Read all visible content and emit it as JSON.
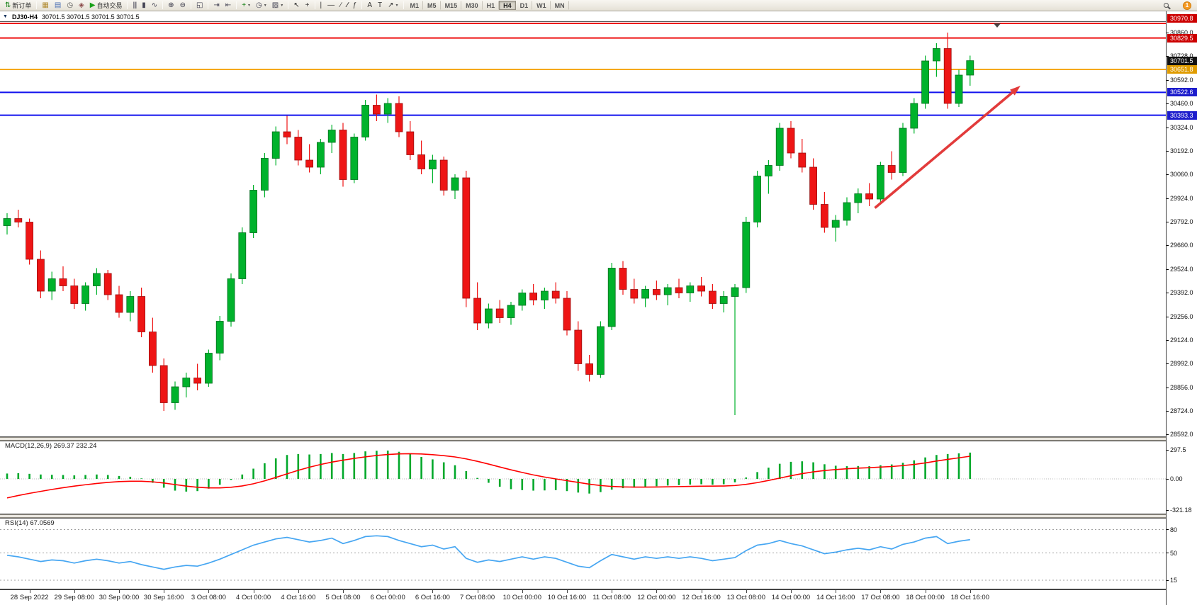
{
  "window": {
    "notification_count": "1"
  },
  "chart": {
    "menu_icon": "▼",
    "symbol_period": "DJ30-H4",
    "ohlc": "30701.5 30701.5 30701.5 30701.5"
  },
  "toolbar": {
    "groups": [
      {
        "items": [
          {
            "name": "new-order-button",
            "icon": "new-order-icon",
            "glyph": "⇅",
            "color": "#0a7a0a",
            "label": "新订单"
          }
        ]
      },
      {
        "items": [
          {
            "name": "charts-button",
            "icon": "chart-window-icon",
            "glyph": "▦",
            "color": "#b08a30"
          },
          {
            "name": "profiles-button",
            "icon": "profiles-icon",
            "glyph": "▤",
            "color": "#4a6fb5"
          },
          {
            "name": "market-watch-button",
            "icon": "market-watch-icon",
            "glyph": "◷",
            "color": "#555555"
          },
          {
            "name": "navigator-button",
            "icon": "navigator-icon",
            "glyph": "◈",
            "color": "#8a4a4a"
          },
          {
            "name": "autotrade-button",
            "icon": "play-icon",
            "glyph": "▶",
            "color": "#18a018",
            "label": "自动交易"
          }
        ]
      },
      {
        "items": [
          {
            "name": "bar-chart-button",
            "icon": "bar-chart-icon",
            "glyph": "|||",
            "ls": -1,
            "color": "#444455"
          },
          {
            "name": "candlestick-chart-button",
            "icon": "candlestick-icon",
            "glyph": "▮",
            "color": "#444455"
          },
          {
            "name": "line-chart-button",
            "icon": "line-chart-icon",
            "glyph": "∿",
            "color": "#444455"
          }
        ]
      },
      {
        "items": [
          {
            "name": "zoom-in-button",
            "icon": "zoom-in-icon",
            "glyph": "⊕",
            "color": "#333344"
          },
          {
            "name": "zoom-out-button",
            "icon": "zoom-out-icon",
            "glyph": "⊖",
            "color": "#333344"
          }
        ]
      },
      {
        "items": [
          {
            "name": "tile-windows-button",
            "icon": "tile-windows-icon",
            "glyph": "◱",
            "color": "#444455"
          }
        ]
      },
      {
        "items": [
          {
            "name": "auto-scroll-button",
            "icon": "auto-scroll-icon",
            "glyph": "⇥",
            "color": "#444455"
          },
          {
            "name": "chart-shift-button",
            "icon": "chart-shift-icon",
            "glyph": "⇤",
            "color": "#444455"
          }
        ]
      },
      {
        "items": [
          {
            "name": "indicators-button",
            "icon": "indicators-add-icon",
            "glyph": "+",
            "color": "#0a7a0a",
            "caret": true
          },
          {
            "name": "periods-button",
            "icon": "clock-icon",
            "glyph": "◷",
            "color": "#444455",
            "caret": true
          },
          {
            "name": "templates-button",
            "icon": "template-icon",
            "glyph": "▨",
            "color": "#444455",
            "caret": true
          }
        ]
      },
      {
        "items": [
          {
            "name": "cursor-button",
            "icon": "cursor-icon",
            "glyph": "↖",
            "color": "#333333"
          },
          {
            "name": "crosshair-button",
            "icon": "crosshair-icon",
            "glyph": "+",
            "color": "#333333"
          }
        ]
      },
      {
        "items": [
          {
            "name": "vertical-line-button",
            "icon": "vertical-line-icon",
            "glyph": "|",
            "color": "#333333"
          },
          {
            "name": "horizontal-line-button",
            "icon": "horizontal-line-icon",
            "glyph": "—",
            "color": "#333333"
          },
          {
            "name": "trendline-button",
            "icon": "trendline-icon",
            "glyph": "∕",
            "color": "#333333"
          },
          {
            "name": "channel-button",
            "icon": "channel-icon",
            "glyph": "∕∕",
            "ls": -2,
            "color": "#333333"
          },
          {
            "name": "fibonacci-button",
            "icon": "fibonacci-icon",
            "glyph": "ƒ",
            "color": "#333333"
          }
        ]
      },
      {
        "items": [
          {
            "name": "text-button",
            "icon": "text-icon",
            "glyph": "A",
            "color": "#333333"
          },
          {
            "name": "text-label-button",
            "icon": "label-icon",
            "glyph": "T",
            "color": "#333333"
          },
          {
            "name": "arrows-button",
            "icon": "arrow-tool-icon",
            "glyph": "↗",
            "color": "#333333",
            "caret": true
          }
        ]
      },
      {
        "items": [
          {
            "name": "timeframe-m1",
            "label": "M1",
            "cls": "tf"
          },
          {
            "name": "timeframe-m5",
            "label": "M5",
            "cls": "tf"
          },
          {
            "name": "timeframe-m15",
            "label": "M15",
            "cls": "tf"
          },
          {
            "name": "timeframe-m30",
            "label": "M30",
            "cls": "tf"
          },
          {
            "name": "timeframe-h1",
            "label": "H1",
            "cls": "tf"
          },
          {
            "name": "timeframe-h4",
            "label": "H4",
            "cls": "tf",
            "active": true
          },
          {
            "name": "timeframe-d1",
            "label": "D1",
            "cls": "tf"
          },
          {
            "name": "timeframe-w1",
            "label": "W1",
            "cls": "tf"
          },
          {
            "name": "timeframe-mn",
            "label": "MN",
            "cls": "tf"
          }
        ]
      }
    ],
    "right_items": [
      {
        "name": "search-button",
        "shape": "magnifier"
      },
      {
        "name": "notifications-button",
        "badge": "1"
      }
    ]
  },
  "chart_data": {
    "type": "candlestick",
    "symbol": "DJ30",
    "period": "H4",
    "colors": {
      "up": "#00b22c",
      "down": "#ee1515",
      "up_border": "#006e1d",
      "down_border": "#991010",
      "macd_histogram": "#00a82a",
      "macd_signal": "#ff0000",
      "rsi_line": "#46a6f2",
      "level_line": "#a0a0a0"
    },
    "price_axis": {
      "min": 28592,
      "max": 30976,
      "ticks": [
        "30860.0",
        "30728.0",
        "30592.0",
        "30460.0",
        "30324.0",
        "30192.0",
        "30060.0",
        "29924.0",
        "29792.0",
        "29660.0",
        "29524.0",
        "29392.0",
        "29256.0",
        "29124.0",
        "28992.0",
        "28856.0",
        "28724.0",
        "28592.0"
      ],
      "badges": [
        {
          "text": "30970.8",
          "price": 30970.8,
          "color": "#cc0000"
        },
        {
          "text": "30829.5",
          "price": 30829.5,
          "color": "#cc0000"
        },
        {
          "text": "30701.5",
          "price": 30701.5,
          "color": "#111111"
        },
        {
          "text": "30651.8",
          "price": 30651.8,
          "color": "#e09c00"
        },
        {
          "text": "30522.6",
          "price": 30522.6,
          "color": "#1c1ccc"
        },
        {
          "text": "30393.3",
          "price": 30393.3,
          "color": "#1c1ccc"
        }
      ]
    },
    "hlines": [
      {
        "price": 30970.8,
        "color": "#ee1111",
        "width": 2
      },
      {
        "price": 30829.5,
        "color": "#ee1111",
        "width": 2
      },
      {
        "price": 30651.8,
        "color": "#f5a800",
        "width": 2
      },
      {
        "price": 30522.6,
        "color": "#1111ee",
        "width": 2
      },
      {
        "price": 30393.3,
        "color": "#1111ee",
        "width": 2
      }
    ],
    "arrow": {
      "from_bar": 77.5,
      "from_price": 29870,
      "to_bar": 90.5,
      "to_price": 30560,
      "color": "#e23b3b"
    },
    "x_labels": [
      "28 Sep 2022",
      "29 Sep 08:00",
      "30 Sep 00:00",
      "30 Sep 16:00",
      "3 Oct 08:00",
      "4 Oct 00:00",
      "4 Oct 16:00",
      "5 Oct 08:00",
      "6 Oct 00:00",
      "6 Oct 16:00",
      "7 Oct 08:00",
      "10 Oct 00:00",
      "10 Oct 16:00",
      "11 Oct 08:00",
      "12 Oct 00:00",
      "12 Oct 16:00",
      "13 Oct 08:00",
      "14 Oct 00:00",
      "14 Oct 16:00",
      "17 Oct 08:00",
      "18 Oct 00:00",
      "18 Oct 16:00"
    ],
    "candles": [
      [
        29770,
        29840,
        29720,
        29810
      ],
      [
        29810,
        29860,
        29760,
        29790
      ],
      [
        29790,
        29810,
        29550,
        29580
      ],
      [
        29580,
        29630,
        29360,
        29400
      ],
      [
        29400,
        29510,
        29350,
        29470
      ],
      [
        29470,
        29540,
        29400,
        29430
      ],
      [
        29430,
        29470,
        29300,
        29330
      ],
      [
        29330,
        29450,
        29290,
        29430
      ],
      [
        29430,
        29530,
        29380,
        29500
      ],
      [
        29500,
        29520,
        29350,
        29380
      ],
      [
        29380,
        29430,
        29250,
        29280
      ],
      [
        29280,
        29400,
        29230,
        29370
      ],
      [
        29370,
        29420,
        29140,
        29170
      ],
      [
        29170,
        29250,
        28940,
        28980
      ],
      [
        28980,
        29020,
        28724,
        28770
      ],
      [
        28770,
        28890,
        28730,
        28860
      ],
      [
        28860,
        28940,
        28800,
        28910
      ],
      [
        28910,
        28990,
        28840,
        28880
      ],
      [
        28880,
        29070,
        28860,
        29050
      ],
      [
        29050,
        29260,
        29010,
        29230
      ],
      [
        29230,
        29500,
        29200,
        29470
      ],
      [
        29470,
        29760,
        29440,
        29730
      ],
      [
        29730,
        30000,
        29700,
        29970
      ],
      [
        29970,
        30180,
        29930,
        30150
      ],
      [
        30150,
        30330,
        30110,
        30300
      ],
      [
        30300,
        30390,
        30230,
        30270
      ],
      [
        30270,
        30310,
        30110,
        30140
      ],
      [
        30140,
        30230,
        30070,
        30100
      ],
      [
        30100,
        30260,
        30060,
        30240
      ],
      [
        30240,
        30340,
        30180,
        30310
      ],
      [
        30310,
        30350,
        29990,
        30030
      ],
      [
        30030,
        30290,
        30010,
        30270
      ],
      [
        30270,
        30480,
        30250,
        30450
      ],
      [
        30450,
        30510,
        30360,
        30400
      ],
      [
        30400,
        30490,
        30350,
        30460
      ],
      [
        30460,
        30500,
        30270,
        30300
      ],
      [
        30300,
        30360,
        30140,
        30170
      ],
      [
        30170,
        30250,
        30060,
        30090
      ],
      [
        30090,
        30170,
        30010,
        30140
      ],
      [
        30140,
        30160,
        29940,
        29970
      ],
      [
        29970,
        30060,
        29920,
        30040
      ],
      [
        30040,
        30080,
        29310,
        29360
      ],
      [
        29360,
        29450,
        29180,
        29220
      ],
      [
        29220,
        29330,
        29190,
        29300
      ],
      [
        29300,
        29350,
        29220,
        29250
      ],
      [
        29250,
        29340,
        29210,
        29320
      ],
      [
        29320,
        29410,
        29290,
        29390
      ],
      [
        29390,
        29440,
        29320,
        29350
      ],
      [
        29350,
        29420,
        29300,
        29400
      ],
      [
        29400,
        29450,
        29330,
        29360
      ],
      [
        29360,
        29400,
        29150,
        29180
      ],
      [
        29180,
        29230,
        28950,
        28990
      ],
      [
        28990,
        29040,
        28890,
        28930
      ],
      [
        28930,
        29230,
        28910,
        29200
      ],
      [
        29200,
        29560,
        29180,
        29530
      ],
      [
        29530,
        29570,
        29380,
        29410
      ],
      [
        29410,
        29470,
        29330,
        29360
      ],
      [
        29360,
        29430,
        29310,
        29410
      ],
      [
        29410,
        29460,
        29350,
        29380
      ],
      [
        29380,
        29440,
        29320,
        29420
      ],
      [
        29420,
        29470,
        29360,
        29390
      ],
      [
        29390,
        29450,
        29340,
        29430
      ],
      [
        29430,
        29480,
        29370,
        29400
      ],
      [
        29400,
        29440,
        29300,
        29330
      ],
      [
        29330,
        29400,
        29280,
        29370
      ],
      [
        29370,
        29440,
        28700,
        29420
      ],
      [
        29420,
        29820,
        29390,
        29790
      ],
      [
        29790,
        30080,
        29760,
        30050
      ],
      [
        30050,
        30140,
        29950,
        30110
      ],
      [
        30110,
        30350,
        30080,
        30320
      ],
      [
        30320,
        30360,
        30150,
        30180
      ],
      [
        30180,
        30260,
        30070,
        30100
      ],
      [
        30100,
        30150,
        29860,
        29890
      ],
      [
        29890,
        29960,
        29730,
        29760
      ],
      [
        29760,
        29830,
        29680,
        29800
      ],
      [
        29800,
        29930,
        29770,
        29900
      ],
      [
        29900,
        29980,
        29840,
        29950
      ],
      [
        29950,
        30010,
        29880,
        29920
      ],
      [
        29920,
        30130,
        29900,
        30110
      ],
      [
        30110,
        30190,
        30030,
        30070
      ],
      [
        30070,
        30350,
        30050,
        30320
      ],
      [
        30320,
        30490,
        30290,
        30460
      ],
      [
        30460,
        30730,
        30430,
        30700
      ],
      [
        30700,
        30800,
        30610,
        30770
      ],
      [
        30770,
        30860,
        30430,
        30460
      ],
      [
        30460,
        30650,
        30440,
        30620
      ],
      [
        30620,
        30730,
        30560,
        30701.5
      ]
    ],
    "macd": {
      "label": "MACD(12,26,9) 269.37 232.24",
      "axis": [
        "297.5",
        "0.00",
        "-321.18"
      ],
      "histogram": [
        55,
        58,
        52,
        45,
        42,
        40,
        36,
        40,
        45,
        40,
        30,
        22,
        5,
        -40,
        -90,
        -120,
        -130,
        -125,
        -100,
        -60,
        -10,
        45,
        105,
        160,
        210,
        245,
        255,
        250,
        255,
        265,
        255,
        265,
        282,
        288,
        290,
        278,
        255,
        225,
        200,
        170,
        140,
        80,
        10,
        -40,
        -80,
        -105,
        -115,
        -120,
        -118,
        -115,
        -125,
        -140,
        -150,
        -135,
        -110,
        -95,
        -90,
        -80,
        -75,
        -68,
        -64,
        -58,
        -55,
        -60,
        -55,
        -35,
        15,
        70,
        115,
        155,
        175,
        180,
        170,
        150,
        135,
        130,
        132,
        130,
        140,
        148,
        165,
        190,
        220,
        245,
        255,
        262,
        269.37
      ],
      "signal": [
        -195,
        -170,
        -148,
        -128,
        -108,
        -90,
        -74,
        -60,
        -47,
        -36,
        -28,
        -24,
        -24,
        -30,
        -42,
        -58,
        -74,
        -86,
        -92,
        -92,
        -86,
        -72,
        -50,
        -20,
        15,
        52,
        88,
        120,
        148,
        172,
        192,
        210,
        226,
        240,
        250,
        256,
        258,
        255,
        248,
        238,
        225,
        205,
        180,
        152,
        122,
        93,
        66,
        41,
        19,
        0,
        -18,
        -36,
        -54,
        -68,
        -77,
        -82,
        -84,
        -84,
        -83,
        -81,
        -79,
        -77,
        -75,
        -74,
        -73,
        -68,
        -56,
        -38,
        -16,
        8,
        32,
        54,
        72,
        86,
        96,
        104,
        110,
        115,
        121,
        127,
        136,
        148,
        164,
        183,
        200,
        216,
        232.24
      ]
    },
    "rsi": {
      "label": "RSI(14) 67.0569",
      "levels": [
        80,
        50,
        15
      ],
      "values": [
        47,
        45,
        42,
        39,
        41,
        40,
        37,
        40,
        42,
        40,
        37,
        39,
        35,
        32,
        29,
        32,
        34,
        33,
        37,
        42,
        48,
        54,
        60,
        64,
        68,
        70,
        67,
        64,
        66,
        69,
        62,
        66,
        71,
        72,
        71,
        66,
        62,
        58,
        60,
        55,
        58,
        43,
        38,
        41,
        39,
        42,
        45,
        42,
        45,
        43,
        38,
        33,
        31,
        40,
        48,
        45,
        42,
        45,
        43,
        45,
        43,
        45,
        43,
        40,
        42,
        44,
        53,
        60,
        62,
        66,
        62,
        59,
        54,
        49,
        51,
        54,
        56,
        54,
        58,
        55,
        61,
        64,
        69,
        71,
        62,
        65,
        67.06
      ]
    }
  }
}
